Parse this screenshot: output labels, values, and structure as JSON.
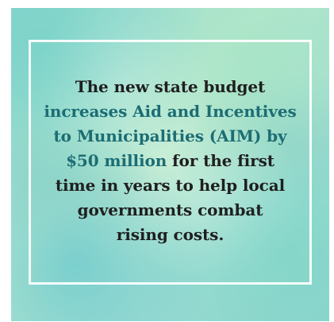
{
  "message": {
    "line1": "The new state budget",
    "line2": "increases Aid and Incentives",
    "line3": "to Municipalities (AIM) by",
    "line4_highlight": "$50 million",
    "line4_rest": " for the first",
    "line5": "time in years to help local",
    "line6": "governments combat",
    "line7": "rising costs."
  },
  "colors": {
    "text": "#1f1f1f",
    "accent": "#1c6d74",
    "frame": "#ffffff",
    "background": "#9fdcd3"
  }
}
